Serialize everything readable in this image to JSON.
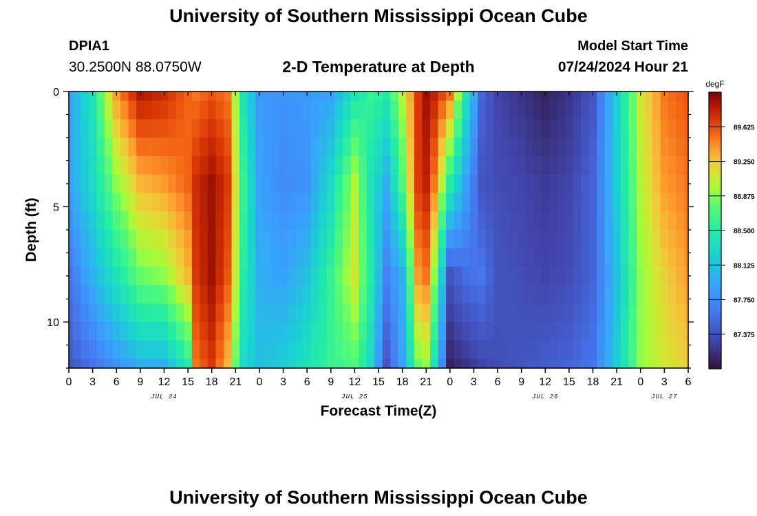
{
  "header": {
    "title": "University of Southern Mississippi Ocean Cube",
    "station_id": "DPIA1",
    "station_coords": "30.2500N  88.0750W",
    "plot_subtitle": "2-D Temperature at Depth",
    "model_start_label": "Model Start Time",
    "model_start_value": "07/24/2024 Hour 21"
  },
  "footer": {
    "title": "University of Southern Mississippi Ocean Cube"
  },
  "chart_data": {
    "type": "heatmap",
    "title": "2-D Temperature at Depth",
    "xlabel": "Forecast Time(Z)",
    "ylabel": "Depth (ft)",
    "units": "degF",
    "x_range_hours_from_jul24_00Z": [
      0,
      78
    ],
    "y_range_ft": [
      0,
      12
    ],
    "x_tick_labels": [
      "0",
      "3",
      "6",
      "9",
      "12",
      "15",
      "18",
      "21",
      "0",
      "3",
      "6",
      "9",
      "12",
      "15",
      "18",
      "21",
      "0",
      "3",
      "6",
      "9",
      "12",
      "15",
      "18",
      "21",
      "0",
      "3",
      "6"
    ],
    "y_tick_labels": [
      "0",
      "5",
      "10"
    ],
    "date_labels": [
      {
        "label": "JUL 24",
        "hour": 12
      },
      {
        "label": "JUL 25",
        "hour": 36
      },
      {
        "label": "JUL 26",
        "hour": 60
      },
      {
        "label": "JUL 27",
        "hour": 75
      }
    ],
    "colorbar": {
      "label": "degF",
      "min": 87.0,
      "max": 90.0,
      "tick_labels": [
        "89.625",
        "89.250",
        "88.875",
        "88.500",
        "88.125",
        "87.750",
        "87.375"
      ]
    },
    "depths_ft": [
      0,
      0.8,
      1.6,
      2.4,
      3.2,
      4.0,
      4.8,
      5.6,
      6.4,
      7.2,
      8.0,
      8.8,
      9.6,
      10.4,
      11.2,
      12.0
    ],
    "time_hours": [
      0,
      3,
      6,
      9,
      12,
      15,
      16,
      18,
      20,
      22,
      24,
      27,
      30,
      33,
      36,
      38,
      40,
      42,
      44,
      45,
      46,
      48,
      50,
      52,
      54,
      57,
      60,
      63,
      66,
      69,
      72,
      75,
      78
    ],
    "temperature_profiles_degF": [
      {
        "depth_ft": 0,
        "values": [
          87.9,
          88.4,
          89.4,
          89.85,
          89.75,
          89.55,
          89.5,
          89.6,
          89.5,
          88.4,
          87.85,
          87.8,
          87.85,
          87.9,
          88.4,
          88.6,
          88.5,
          89.0,
          89.7,
          89.9,
          89.8,
          89.5,
          88.4,
          87.5,
          87.3,
          87.2,
          87.1,
          87.2,
          87.4,
          88.2,
          89.1,
          89.5,
          89.6
        ]
      },
      {
        "depth_ft": 4.0,
        "values": [
          87.9,
          88.3,
          88.9,
          89.3,
          89.4,
          89.55,
          89.75,
          89.9,
          89.7,
          88.6,
          87.9,
          87.75,
          87.8,
          88.3,
          89.0,
          88.4,
          88.0,
          88.7,
          89.7,
          89.8,
          89.5,
          88.5,
          87.9,
          87.4,
          87.35,
          87.3,
          87.25,
          87.3,
          87.5,
          88.2,
          89.0,
          89.4,
          89.5
        ]
      },
      {
        "depth_ft": 8.0,
        "values": [
          87.6,
          88.0,
          88.4,
          88.8,
          88.9,
          89.3,
          89.7,
          89.9,
          89.6,
          88.5,
          88.0,
          87.9,
          88.1,
          88.6,
          89.1,
          88.5,
          87.7,
          88.0,
          89.4,
          89.5,
          88.9,
          87.4,
          87.55,
          87.6,
          87.4,
          87.35,
          87.3,
          87.35,
          87.5,
          88.1,
          88.9,
          89.2,
          89.4
        ]
      },
      {
        "depth_ft": 12.0,
        "values": [
          87.4,
          87.6,
          87.8,
          88.0,
          88.0,
          88.5,
          89.5,
          89.7,
          89.3,
          88.3,
          88.1,
          88.2,
          88.4,
          88.6,
          88.7,
          88.3,
          87.4,
          87.9,
          88.8,
          88.9,
          88.4,
          87.1,
          87.2,
          87.3,
          87.35,
          87.4,
          87.45,
          87.5,
          87.6,
          88.2,
          88.9,
          89.1,
          89.2
        ]
      }
    ]
  }
}
